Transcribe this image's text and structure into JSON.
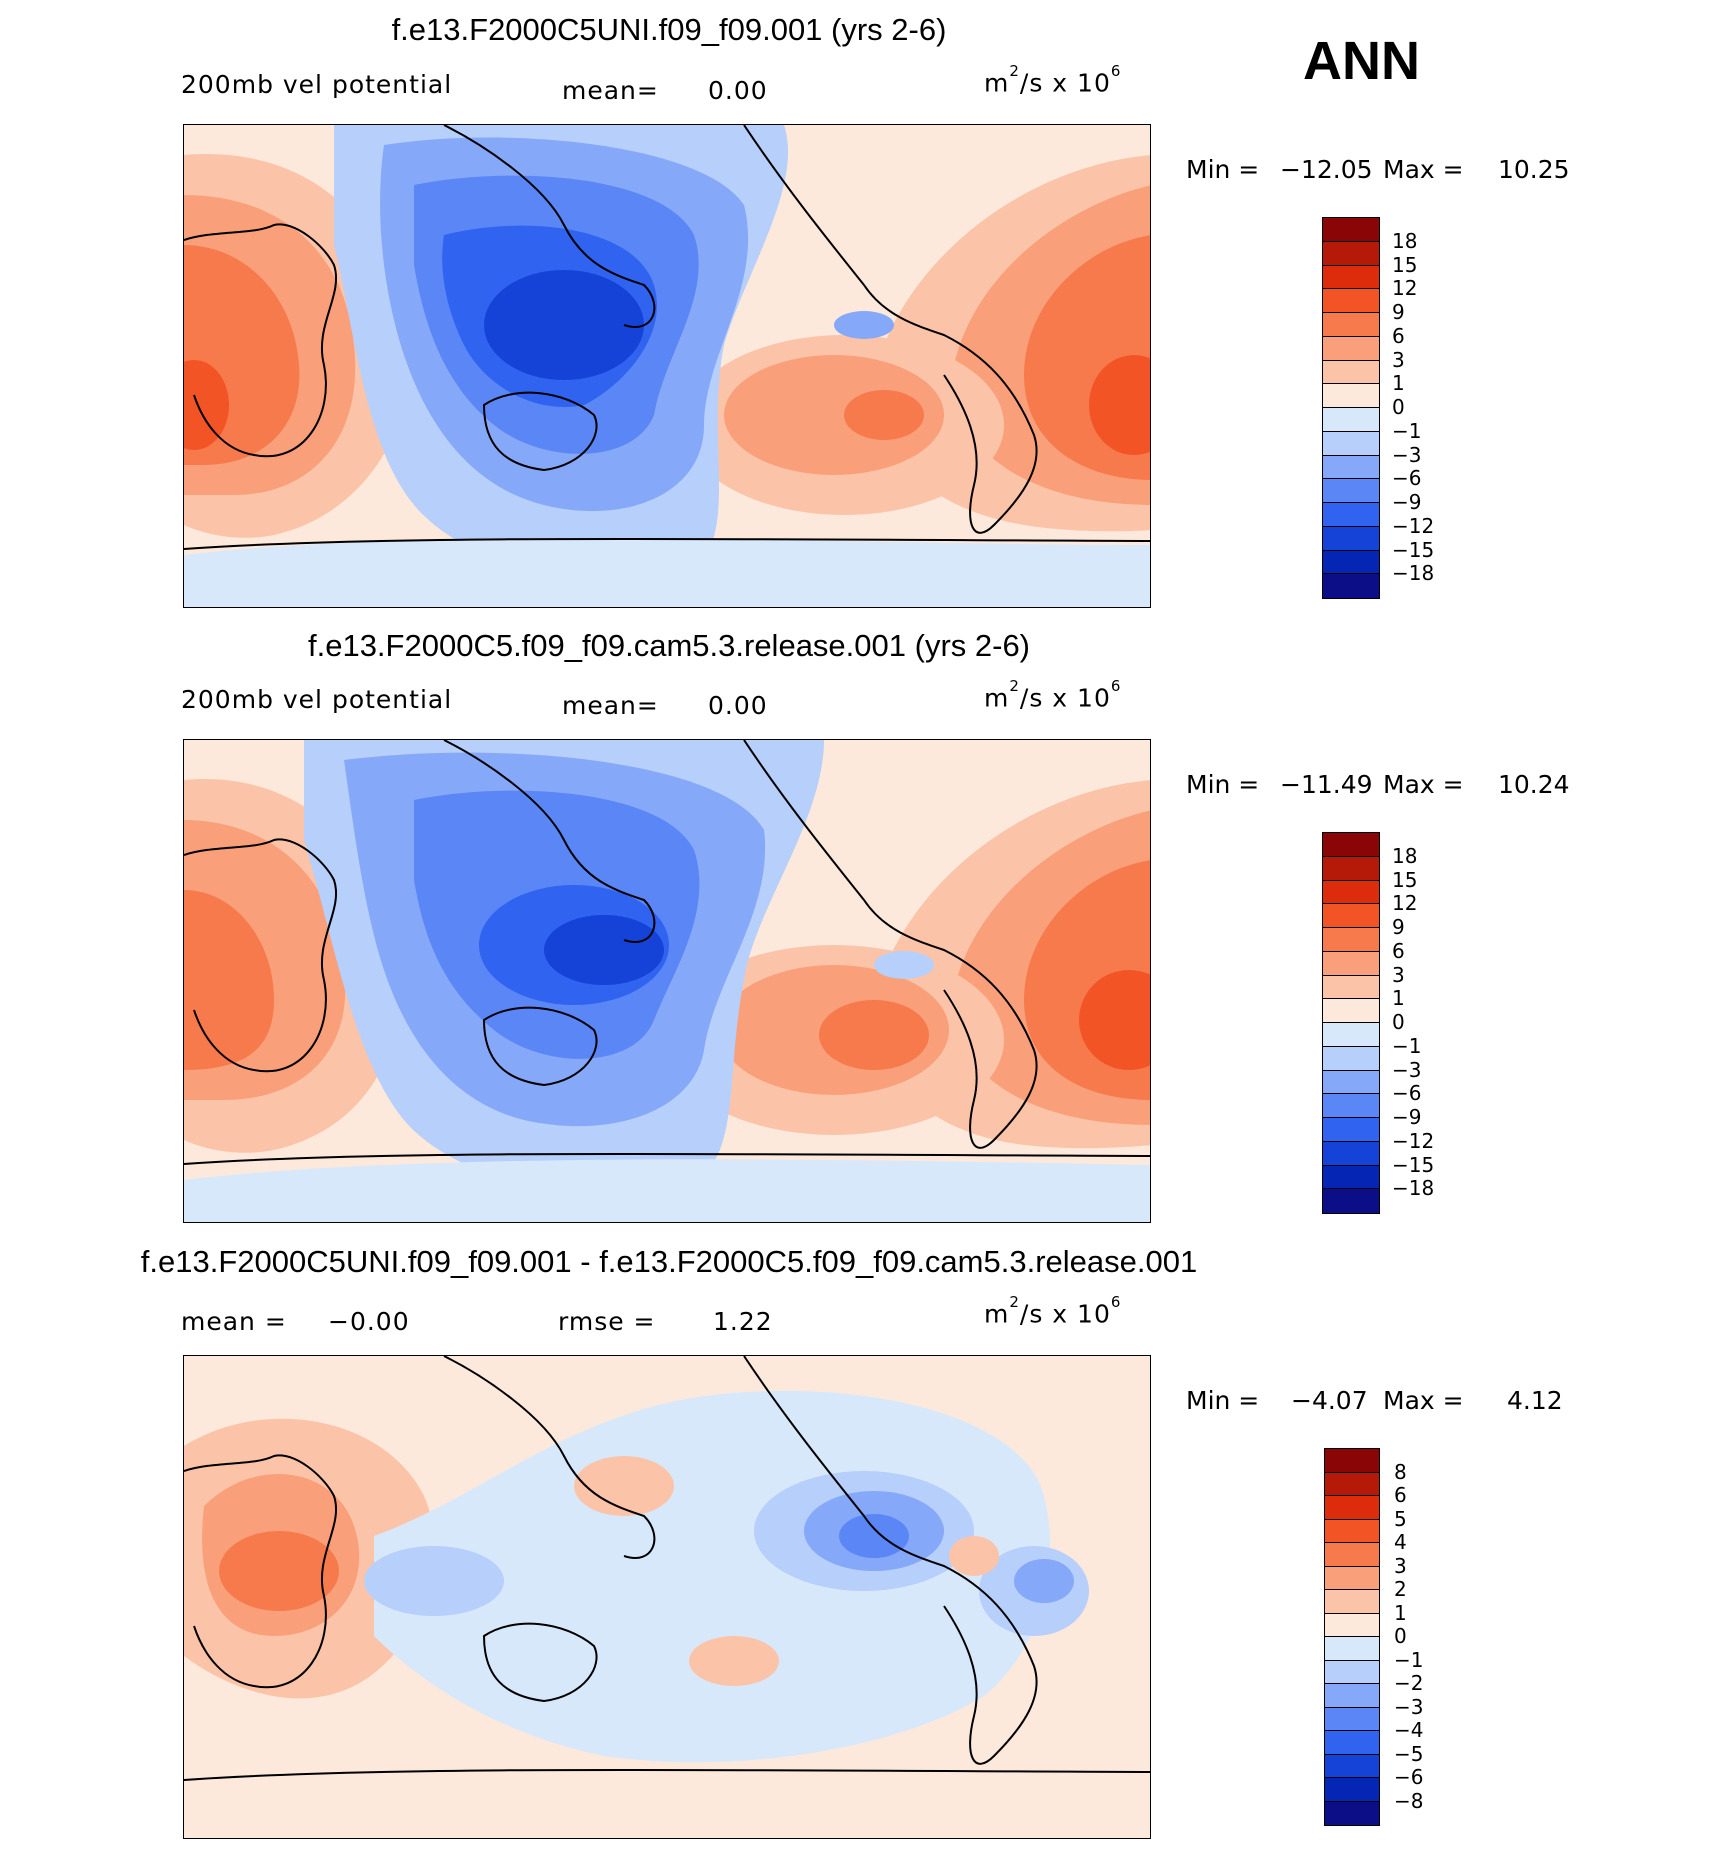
{
  "season_label": "ANN",
  "colors": {
    "main_scale": [
      "#0b0e87",
      "#0525b4",
      "#1543d8",
      "#2f63f0",
      "#5a87f5",
      "#86a8f8",
      "#b6cffb",
      "#d8e8fb",
      "#fde9dc",
      "#fbc4a9",
      "#f9a07a",
      "#f77a4c",
      "#f25426",
      "#dc2c0c",
      "#b51a08",
      "#8a0505"
    ],
    "diff_scale": [
      "#0b0e87",
      "#0525b4",
      "#1543d8",
      "#2f63f0",
      "#5a87f5",
      "#86a8f8",
      "#b6cffb",
      "#d8e8fb",
      "#fde9dc",
      "#fbc4a9",
      "#f9a07a",
      "#f77a4c",
      "#f25426",
      "#dc2c0c",
      "#b51a08",
      "#8a0505"
    ],
    "coastline": "#000000"
  },
  "panels": [
    {
      "title": "f.e13.F2000C5UNI.f09_f09.001 (yrs 2-6)",
      "left_label": "200mb vel potential",
      "center_label": "mean=",
      "center_value": "0.00",
      "units_base": "m",
      "units_exp1": "2",
      "units_mid": "/s x 10",
      "units_exp2": "6",
      "min_label": "Min =",
      "min_value": "−12.05",
      "max_label": "Max =",
      "max_value": "10.25",
      "colorbar_labels": [
        "18",
        "15",
        "12",
        "9",
        "6",
        "3",
        "1",
        "0",
        "−1",
        "−3",
        "−6",
        "−9",
        "−12",
        "−15",
        "−18"
      ]
    },
    {
      "title": "f.e13.F2000C5.f09_f09.cam5.3.release.001 (yrs 2-6)",
      "left_label": "200mb vel potential",
      "center_label": "mean=",
      "center_value": "0.00",
      "units_base": "m",
      "units_exp1": "2",
      "units_mid": "/s x 10",
      "units_exp2": "6",
      "min_label": "Min =",
      "min_value": "−11.49",
      "max_label": "Max =",
      "max_value": "10.24",
      "colorbar_labels": [
        "18",
        "15",
        "12",
        "9",
        "6",
        "3",
        "1",
        "0",
        "−1",
        "−3",
        "−6",
        "−9",
        "−12",
        "−15",
        "−18"
      ]
    },
    {
      "title": "f.e13.F2000C5UNI.f09_f09.001 - f.e13.F2000C5.f09_f09.cam5.3.release.001",
      "left_label": "mean =",
      "left_value": "−0.00",
      "center_label": "rmse =",
      "center_value": "1.22",
      "units_base": "m",
      "units_exp1": "2",
      "units_mid": "/s x 10",
      "units_exp2": "6",
      "min_label": "Min =",
      "min_value": "−4.07",
      "max_label": "Max =",
      "max_value": "4.12",
      "colorbar_labels": [
        "8",
        "6",
        "5",
        "4",
        "3",
        "2",
        "1",
        "0",
        "−1",
        "−2",
        "−3",
        "−4",
        "−5",
        "−6",
        "−8"
      ]
    }
  ],
  "chart_data": [
    {
      "type": "heatmap",
      "title": "f.e13.F2000C5UNI.f09_f09.001 (yrs 2-6)",
      "variable": "200mb vel potential",
      "units": "m^2/s x 10^6",
      "mean": 0.0,
      "min": -12.05,
      "max": 10.25,
      "contour_levels": [
        -18,
        -15,
        -12,
        -9,
        -6,
        -3,
        -1,
        0,
        1,
        3,
        6,
        9,
        12,
        15,
        18
      ]
    },
    {
      "type": "heatmap",
      "title": "f.e13.F2000C5.f09_f09.cam5.3.release.001 (yrs 2-6)",
      "variable": "200mb vel potential",
      "units": "m^2/s x 10^6",
      "mean": 0.0,
      "min": -11.49,
      "max": 10.24,
      "contour_levels": [
        -18,
        -15,
        -12,
        -9,
        -6,
        -3,
        -1,
        0,
        1,
        3,
        6,
        9,
        12,
        15,
        18
      ]
    },
    {
      "type": "heatmap",
      "title": "f.e13.F2000C5UNI.f09_f09.001 - f.e13.F2000C5.f09_f09.cam5.3.release.001",
      "units": "m^2/s x 10^6",
      "mean": -0.0,
      "rmse": 1.22,
      "min": -4.07,
      "max": 4.12,
      "contour_levels": [
        -8,
        -6,
        -5,
        -4,
        -3,
        -2,
        -1,
        0,
        1,
        2,
        3,
        4,
        5,
        6,
        8
      ]
    }
  ]
}
